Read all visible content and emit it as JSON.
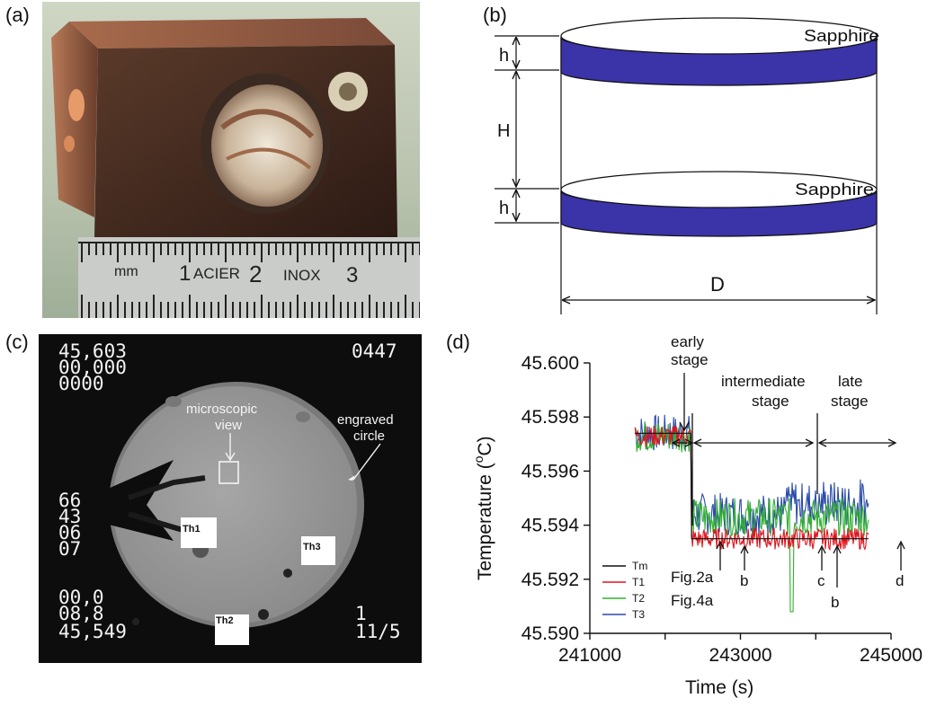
{
  "panels": {
    "a": {
      "label": "(a)",
      "ruler_text": [
        "mm",
        "1",
        "ACIER",
        "2",
        "INOX",
        "3"
      ]
    },
    "b": {
      "label": "(b)",
      "top_disc_label": "Sapphire",
      "bottom_disc_label": "Sapphire",
      "dim_h_top": "h",
      "dim_H": "H",
      "dim_h_bottom": "h",
      "dim_D": "D",
      "disc_color": "#3b33a8"
    },
    "c": {
      "label": "(c)",
      "readout_top_left": [
        "45,603",
        "00,000",
        "0000"
      ],
      "readout_top_right": "0447",
      "readout_mid_left": [
        "66",
        "43",
        "06",
        "07"
      ],
      "readout_bottom_left": [
        "00,0",
        "08,8",
        "45,549"
      ],
      "readout_bottom_right": [
        "1",
        "11/5"
      ],
      "annotation_microscopic": [
        "microscopic",
        "view"
      ],
      "annotation_engraved": [
        "engraved",
        "circle"
      ],
      "thermistors": [
        "Th1",
        "Th2",
        "Th3"
      ]
    },
    "d": {
      "label": "(d)",
      "stage_labels": {
        "early": [
          "early",
          "stage"
        ],
        "intermediate": [
          "intermediate",
          "stage"
        ],
        "late": [
          "late",
          "stage"
        ]
      },
      "point_labels": [
        "Fig.2a",
        "b",
        "Fig.4a",
        "b",
        "c",
        "b",
        "d"
      ]
    }
  },
  "chart_data": {
    "type": "line",
    "xlabel": "Time (s)",
    "ylabel": "Temperature (°C)",
    "ylabel_parts": [
      "Temperature (",
      "o",
      "C)"
    ],
    "xlim": [
      241000,
      245000
    ],
    "ylim": [
      45.59,
      45.6
    ],
    "x_ticks": [
      241000,
      243000,
      245000
    ],
    "x_tick_labels": [
      "241000",
      "243000",
      "245000"
    ],
    "y_ticks": [
      45.59,
      45.592,
      45.594,
      45.596,
      45.598,
      45.6
    ],
    "y_tick_labels": [
      "45.590",
      "45.592",
      "45.594",
      "45.596",
      "45.598",
      "45.600"
    ],
    "grid": false,
    "legend_placement": "lower-left",
    "step_time": 242350,
    "x_start": 241600,
    "x_end": 244700,
    "series": [
      {
        "name": "Tm",
        "color": "#111111",
        "before": 45.5974,
        "after": 45.5935,
        "noise_before": 0.0002,
        "noise_after": 0.0002
      },
      {
        "name": "T1",
        "color": "#e0141b",
        "before": 45.5973,
        "after": 45.5935,
        "noise_before": 0.0004,
        "noise_after": 0.0004
      },
      {
        "name": "T2",
        "color": "#30b030",
        "before": 45.5973,
        "after": 45.5943,
        "noise_before": 0.0006,
        "noise_after": 0.0007
      },
      {
        "name": "T3",
        "color": "#2a4aa8",
        "before": 45.5974,
        "after": 45.5944,
        "noise_before": 0.0007,
        "noise_after": 0.0008
      }
    ]
  }
}
